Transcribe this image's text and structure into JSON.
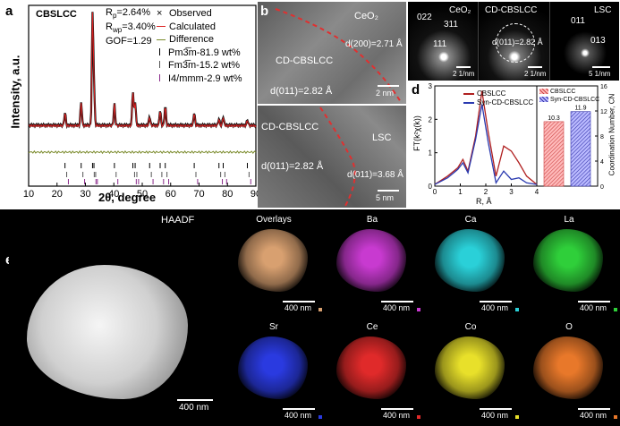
{
  "panel_a": {
    "label": "a",
    "sample": "CBSLCC",
    "rp": "R",
    "rp_sub": "p",
    "rp_val": "=2.64%",
    "rwp": "R",
    "rwp_sub": "wp",
    "rwp_val": "=3.40%",
    "gof": "GOF=1.29",
    "legend": [
      "Observed",
      "Calculated",
      "Difference"
    ],
    "phases": [
      "Pm3̅m-81.9 wt%",
      "Fm3̅m-15.2 wt%",
      "I4/mmm-2.9 wt%"
    ]
  },
  "panel_b": {
    "label": "b",
    "ceo2": "CeO₂",
    "d200": "d(200)=2.71 Å",
    "cd1": "CD-CBSLCC",
    "d011a": "d(011)=2.82 Å",
    "scale1": "2 nm",
    "cd2": "CD-CBSLCC",
    "lsc": "LSC",
    "d011b": "d(011)=2.82 Å",
    "d011c": "d(011)=3.68 Å",
    "scale2": "5 nm"
  },
  "panel_c": {
    "label": "c",
    "tiles": [
      {
        "title": "CeO₂",
        "spots": [
          "022",
          "311",
          "111"
        ],
        "scale": "2 1/nm"
      },
      {
        "title": "CD-CBSLCC",
        "spots": [
          "d(011)=2.82 Å"
        ],
        "scale": "2 1/nm"
      },
      {
        "title": "LSC",
        "spots": [
          "011",
          "013"
        ],
        "scale": "5 1/nm"
      }
    ]
  },
  "panel_d": {
    "label": "d",
    "left_legend": [
      "CBSLCC",
      "Syn-CD-CBSLCC"
    ],
    "right_legend": [
      "CBSLCC",
      "Syn-CD-CBSLCC"
    ],
    "bar_labels": [
      "10.3",
      "11.9"
    ],
    "xlabel": "R, Å",
    "ylabel": "FT(k²χ(k))",
    "right_ylabel": "Coordination Number, CN"
  },
  "panel_e": {
    "label": "e",
    "haadf": "HAADF",
    "haadf_scale": "400 nm",
    "tiles": [
      {
        "name": "Overlays",
        "scale": "400 nm",
        "color": "#d8a070"
      },
      {
        "name": "Ba",
        "scale": "400 nm",
        "color": "#c83ad0"
      },
      {
        "name": "Ca",
        "scale": "400 nm",
        "color": "#2ad0d8"
      },
      {
        "name": "La",
        "scale": "400 nm",
        "color": "#2fcf3a"
      },
      {
        "name": "Sr",
        "scale": "400 nm",
        "color": "#2a3ae0"
      },
      {
        "name": "Ce",
        "scale": "400 nm",
        "color": "#e02a2a"
      },
      {
        "name": "Co",
        "scale": "400 nm",
        "color": "#e8e02a"
      },
      {
        "name": "O",
        "scale": "400 nm",
        "color": "#e8782a"
      }
    ]
  },
  "chart_data": [
    {
      "type": "scatter",
      "title": "",
      "xlabel": "2θ, degree",
      "ylabel": "Intensity, a.u.",
      "xlim": [
        10,
        90
      ],
      "x_ticks": [
        "10",
        "20",
        "30",
        "40",
        "50",
        "60",
        "70",
        "80",
        "90"
      ],
      "series": [
        {
          "name": "Observed",
          "peaks_2theta": [
            22.8,
            28.5,
            32.5,
            33.0,
            40.2,
            46.7,
            47.5,
            52.6,
            56.3,
            58.1,
            68.3,
            77.0,
            78.5,
            87.0
          ],
          "peak_heights": [
            0.12,
            0.22,
            1.0,
            0.35,
            0.2,
            0.32,
            0.22,
            0.08,
            0.14,
            0.18,
            0.12,
            0.06,
            0.08,
            0.05
          ]
        }
      ]
    },
    {
      "type": "line",
      "title": "",
      "xlabel": "R, Å",
      "ylabel": "FT(k²χ(k))",
      "xlim": [
        0,
        4
      ],
      "ylim": [
        0,
        3
      ],
      "x_ticks": [
        "0",
        "1",
        "2",
        "3",
        "4"
      ],
      "y_ticks": [
        "0",
        "1",
        "2",
        "3"
      ],
      "series": [
        {
          "name": "CBSLCC",
          "x": [
            0,
            0.5,
            0.9,
            1.1,
            1.3,
            1.6,
            1.85,
            2.1,
            2.4,
            2.7,
            3.0,
            3.3,
            3.6,
            4.0
          ],
          "y": [
            0.05,
            0.3,
            0.55,
            0.8,
            0.45,
            1.5,
            2.85,
            1.6,
            0.3,
            1.2,
            1.05,
            0.7,
            0.3,
            0.05
          ]
        },
        {
          "name": "Syn-CD-CBSLCC",
          "x": [
            0,
            0.5,
            0.9,
            1.1,
            1.3,
            1.6,
            1.85,
            2.1,
            2.4,
            2.7,
            3.0,
            3.3,
            3.6,
            4.0
          ],
          "y": [
            0.05,
            0.25,
            0.5,
            0.7,
            0.4,
            1.4,
            2.45,
            1.3,
            0.1,
            0.45,
            0.2,
            0.25,
            0.1,
            0.05
          ]
        }
      ]
    },
    {
      "type": "bar",
      "title": "",
      "ylabel": "Coordination Number, CN",
      "ylim": [
        0,
        16
      ],
      "y_ticks": [
        "0",
        "4",
        "8",
        "12",
        "16"
      ],
      "categories": [
        "CBSLCC",
        "Syn-CD-CBSLCC"
      ],
      "values": [
        10.3,
        11.9
      ]
    }
  ]
}
